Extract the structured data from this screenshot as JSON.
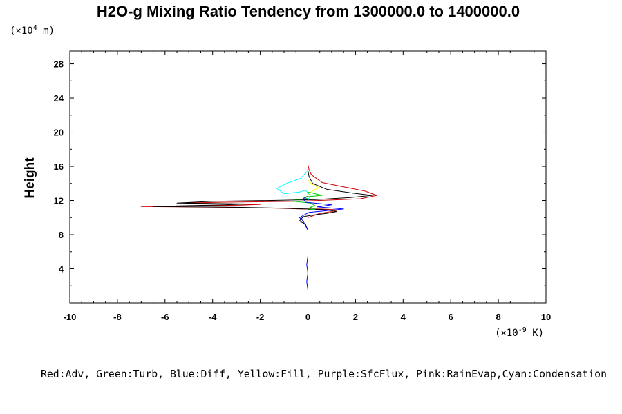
{
  "chart_data": {
    "type": "line",
    "title": "H2O-g Mixing Ratio Tendency from 1300000.0 to 1400000.0",
    "ylabel": "Height",
    "y_unit": {
      "prefix": "(×10",
      "exp": "4",
      "suffix": " m)"
    },
    "x_unit": {
      "prefix": "(×10",
      "exp": "-9",
      "suffix": " K)"
    },
    "xlim": [
      -10,
      10
    ],
    "ylim": [
      0,
      29.5
    ],
    "xticks": [
      -10,
      -8,
      -6,
      -4,
      -2,
      0,
      2,
      4,
      6,
      8,
      10
    ],
    "yticks": [
      4,
      8,
      12,
      16,
      20,
      24,
      28
    ],
    "grid": false,
    "legend_text": "Red:Adv, Green:Turb, Blue:Diff, Yellow:Fill, Purple:SfcFlux, Pink:RainEvap,Cyan:Condensation",
    "series": [
      {
        "color": "#ffff00",
        "x": [
          0,
          0,
          0.05,
          0.25,
          0.45,
          0.25,
          0.1,
          0,
          0
        ],
        "y": [
          0,
          12.6,
          12.9,
          13.2,
          13.5,
          13.8,
          14.1,
          14.4,
          29.5
        ]
      },
      {
        "color": "#ff00ff",
        "x": [
          0,
          0
        ],
        "y": [
          0,
          29.5
        ]
      },
      {
        "color": "#cc0000",
        "x": [
          0,
          0,
          0,
          0.05,
          0.15,
          0.6,
          1.5,
          2.4,
          2.9,
          2.2,
          0.5,
          -0.6,
          -3.5,
          -5.2,
          -2.0,
          -2.8,
          -7.0,
          -3.5,
          -1.2,
          -0.3,
          0.5,
          1.3,
          1.0,
          0.5,
          0.3,
          0,
          0,
          0
        ],
        "y": [
          29.5,
          17.0,
          16.2,
          15.6,
          15.0,
          14.1,
          13.6,
          13.1,
          12.6,
          12.2,
          12.0,
          11.9,
          11.8,
          11.7,
          11.55,
          11.45,
          11.3,
          11.2,
          11.1,
          11.0,
          11.0,
          10.9,
          10.7,
          10.5,
          10.3,
          10.0,
          9.5,
          0
        ]
      },
      {
        "color": "#000000",
        "x": [
          0,
          0,
          0.05,
          0.2,
          0.8,
          1.8,
          2.7,
          1.8,
          0.3,
          -1.5,
          -4.0,
          -5.5,
          -2.5,
          -3.5,
          -6.5,
          -3.0,
          -1.0,
          0,
          0.8,
          1.2,
          0.8,
          0.2,
          -0.2,
          -0.35,
          -0.1,
          0,
          0
        ],
        "y": [
          29.5,
          15.5,
          14.8,
          14.0,
          13.3,
          12.9,
          12.6,
          12.35,
          12.1,
          12.0,
          11.9,
          11.7,
          11.6,
          11.5,
          11.3,
          11.2,
          11.1,
          11.0,
          10.9,
          10.7,
          10.5,
          10.3,
          10.1,
          9.6,
          9.2,
          8.5,
          0
        ]
      },
      {
        "color": "#00cc00",
        "x": [
          0,
          0,
          0.3,
          0.1,
          0.3,
          0.1,
          -0.6,
          -0.6,
          0,
          -0.2,
          0.6,
          0.3,
          0,
          0
        ],
        "y": [
          0,
          10.9,
          11.0,
          11.2,
          11.4,
          11.7,
          11.9,
          12.1,
          12.2,
          12.4,
          12.6,
          12.8,
          13.0,
          29.5
        ]
      },
      {
        "color": "#0000ff",
        "x": [
          0,
          0,
          -0.05,
          0,
          -0.05,
          0,
          0,
          0,
          -0.2,
          -0.35,
          -0.1,
          0.05,
          1.5,
          0.4,
          1.0,
          -0.1,
          -0.2,
          0,
          0
        ],
        "y": [
          0,
          1.5,
          2.5,
          3.5,
          4.5,
          5.5,
          7.5,
          8.5,
          9.6,
          10.0,
          10.4,
          10.6,
          11.0,
          11.25,
          11.5,
          11.8,
          12.2,
          12.5,
          29.5
        ]
      },
      {
        "color": "#00ffff",
        "x": [
          0,
          0,
          0.05,
          0.1,
          0,
          -0.1,
          -0.35,
          -1.0,
          -1.3,
          -0.9,
          -0.3,
          0,
          0
        ],
        "y": [
          0,
          12.0,
          12.3,
          12.6,
          12.9,
          13.2,
          13.0,
          12.8,
          13.4,
          14.0,
          14.6,
          15.5,
          29.5
        ]
      }
    ]
  }
}
